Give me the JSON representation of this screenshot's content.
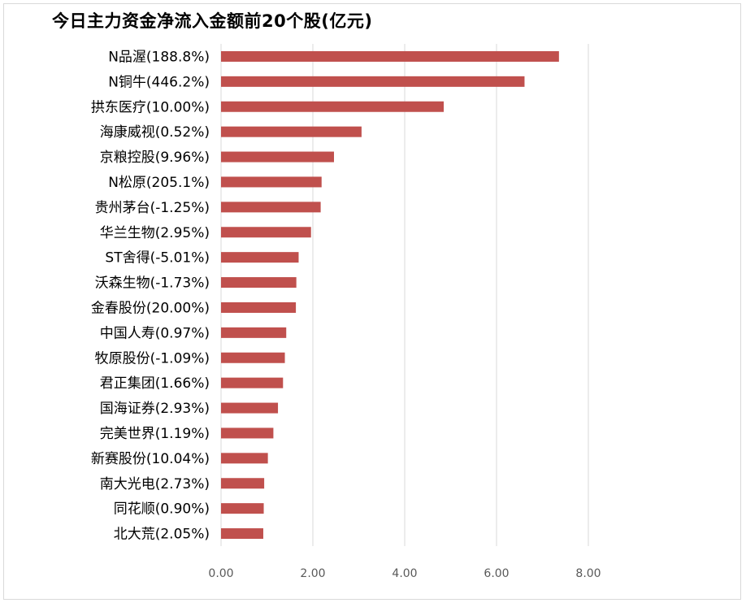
{
  "chart_data": {
    "type": "bar",
    "orientation": "horizontal",
    "title": "今日主力资金净流入金额前20个股(亿元)",
    "categories": [
      "N品渥(188.8%)",
      "N铜牛(446.2%)",
      "拱东医疗(10.00%)",
      "海康威视(0.52%)",
      "京粮控股(9.96%)",
      "N松原(205.1%)",
      "贵州茅台(-1.25%)",
      "华兰生物(2.95%)",
      "ST舍得(-5.01%)",
      "沃森生物(-1.73%)",
      "金春股份(20.00%)",
      "中国人寿(0.97%)",
      "牧原股份(-1.09%)",
      "君正集团(1.66%)",
      "国海证券(2.93%)",
      "完美世界(1.19%)",
      "新赛股份(10.04%)",
      "南大光电(2.73%)",
      "同花顺(0.90%)",
      "北大荒(2.05%)"
    ],
    "values": [
      7.36,
      6.61,
      4.85,
      3.06,
      2.46,
      2.19,
      2.17,
      1.96,
      1.69,
      1.64,
      1.63,
      1.42,
      1.39,
      1.35,
      1.24,
      1.14,
      1.02,
      0.94,
      0.93,
      0.92
    ],
    "xlim": [
      0,
      8
    ],
    "xticks": [
      "0.00",
      "2.00",
      "4.00",
      "6.00",
      "8.00"
    ],
    "xtick_values": [
      0,
      2,
      4,
      6,
      8
    ],
    "grid": true,
    "legend": "none",
    "bar_color": "#c0504d",
    "grid_color": "#d9d9d9"
  }
}
